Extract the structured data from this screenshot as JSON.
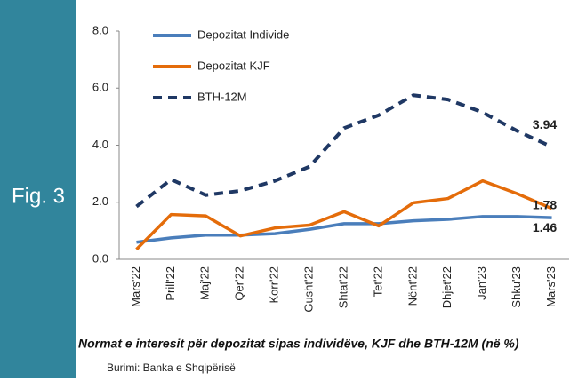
{
  "figure_label": "Fig. 3",
  "chart_data": {
    "type": "line",
    "categories": [
      "Mars'22",
      "Prill'22",
      "Maj'22",
      "Qer'22",
      "Korr'22",
      "Gusht'22",
      "Shtat'22",
      "Tet'22",
      "Nënt'22",
      "Dhjet'22",
      "Jan'23",
      "Shku'23",
      "Mars'23"
    ],
    "series": [
      {
        "name": "Depozitat Individe",
        "color": "#4a7ebb",
        "dash": "solid",
        "values": [
          0.6,
          0.75,
          0.85,
          0.85,
          0.9,
          1.05,
          1.25,
          1.25,
          1.35,
          1.4,
          1.5,
          1.5,
          1.46
        ],
        "value_labels": [
          null,
          null,
          null,
          null,
          null,
          null,
          null,
          null,
          null,
          null,
          null,
          null,
          "1.46"
        ]
      },
      {
        "name": "Depozitat KJF",
        "color": "#e46c0a",
        "dash": "solid",
        "values": [
          0.35,
          1.57,
          1.52,
          0.82,
          1.1,
          1.2,
          1.67,
          1.17,
          1.98,
          2.13,
          2.75,
          2.3,
          1.78
        ],
        "value_labels": [
          null,
          null,
          null,
          null,
          null,
          null,
          null,
          null,
          null,
          null,
          null,
          null,
          "1.78"
        ]
      },
      {
        "name": "BTH-12M",
        "color": "#1f3864",
        "dash": "dashed",
        "values": [
          1.85,
          2.8,
          2.25,
          2.4,
          2.75,
          3.25,
          4.6,
          5.05,
          5.75,
          5.6,
          5.15,
          4.5,
          3.94
        ],
        "value_labels": [
          null,
          null,
          null,
          null,
          null,
          null,
          null,
          null,
          null,
          null,
          null,
          null,
          "3.94"
        ]
      }
    ],
    "ylim": [
      0,
      8
    ],
    "yticks": [
      {
        "value": 0,
        "label": "0.0"
      },
      {
        "value": 2,
        "label": "2.0"
      },
      {
        "value": 4,
        "label": "4.0"
      },
      {
        "value": 6,
        "label": "6.0"
      },
      {
        "value": 8,
        "label": "8.0"
      }
    ],
    "grid": false,
    "legend": "top-left"
  },
  "caption": "Normat e interesit për depozitat sipas individëve, KJF dhe BTH-12M (në %)",
  "source": "Burimi: Banka e Shqipërisë"
}
